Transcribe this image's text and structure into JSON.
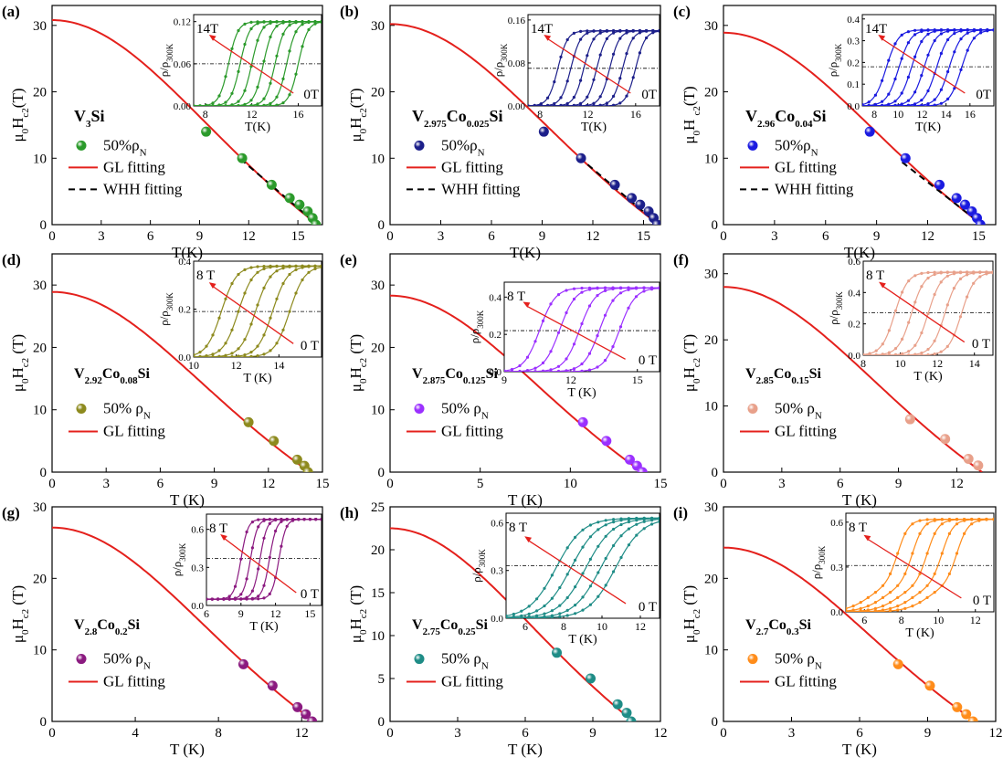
{
  "figure": {
    "colors": {
      "gl_line": "#e4201c",
      "whh_line": "#000000",
      "inset_arrow": "#e4201c",
      "axes": "#000000"
    }
  },
  "chart_data": [
    {
      "id": "a",
      "type": "scatter",
      "panel_label": "(a)",
      "title": "",
      "xlabel": "T(K)",
      "ylabel": "μ0Hc2(T)",
      "xlim": [
        0,
        16.5
      ],
      "ylim": [
        0,
        33
      ],
      "xticks": [
        "0",
        "3",
        "6",
        "9",
        "12",
        "15"
      ],
      "yticks": [
        "0",
        "10",
        "20",
        "30"
      ],
      "compound": [
        "V",
        "3",
        "Si",
        ""
      ],
      "marker_color": "#2b9a2b",
      "legend": {
        "position": "left",
        "entries": [
          "50%ρN",
          "GL fitting",
          "WHH fitting"
        ]
      },
      "series": [
        {
          "name": "50%ρN",
          "type": "scatter",
          "x": [
            9.4,
            11.6,
            13.4,
            14.5,
            15.1,
            15.6,
            15.9,
            16.1
          ],
          "y": [
            14,
            10,
            6,
            4,
            3,
            2,
            1,
            0
          ]
        },
        {
          "name": "GL fitting",
          "type": "line",
          "style": "gl",
          "tc": 16.2,
          "h0": 30.8
        },
        {
          "name": "WHH fitting",
          "type": "line",
          "style": "whh",
          "tc": 16.2,
          "slope": 2.1,
          "from_t": 11.5
        }
      ],
      "inset": {
        "xlabel": "T(K)",
        "ylabel": "ρ/ρ300K",
        "xlim": [
          7,
          18
        ],
        "ylim": [
          0,
          0.13
        ],
        "xticks": [
          "8",
          "12",
          "16"
        ],
        "yticks": [
          "0.00",
          "0.06",
          "0.12"
        ],
        "yticks_values": [
          0,
          0.06,
          0.12
        ],
        "dash_y": 0.06,
        "high_field": "14T",
        "low_field": "0T",
        "curves": {
          "n": 7,
          "tc_start": 10,
          "tc_end": 16,
          "width": 0.4,
          "rho_n": 0.12
        }
      }
    },
    {
      "id": "b",
      "type": "scatter",
      "panel_label": "(b)",
      "title": "",
      "xlabel": "T(K)",
      "ylabel": "μ0Hc2(T)",
      "xlim": [
        0,
        16
      ],
      "ylim": [
        0,
        33
      ],
      "xticks": [
        "0",
        "3",
        "6",
        "9",
        "12",
        "15"
      ],
      "yticks": [
        "0",
        "10",
        "20",
        "30"
      ],
      "compound": [
        "V",
        "2.975",
        "Co",
        "0.025",
        "Si"
      ],
      "marker_color": "#1c1f8a",
      "legend": {
        "position": "left",
        "entries": [
          "50%ρN",
          "GL fitting",
          "WHH fitting"
        ]
      },
      "series": [
        {
          "name": "50%ρN",
          "type": "scatter",
          "x": [
            9.1,
            11.3,
            13.3,
            14.3,
            14.8,
            15.3,
            15.6,
            15.8
          ],
          "y": [
            14,
            10,
            6,
            4,
            3,
            2,
            1,
            0
          ]
        },
        {
          "name": "GL fitting",
          "type": "line",
          "style": "gl",
          "tc": 15.9,
          "h0": 30.2
        },
        {
          "name": "WHH fitting",
          "type": "line",
          "style": "whh",
          "tc": 15.9,
          "slope": 2.15,
          "from_t": 11.2
        }
      ],
      "inset": {
        "xlabel": "T(K)",
        "ylabel": "ρ/ρ300K",
        "xlim": [
          7,
          18
        ],
        "ylim": [
          0,
          0.17
        ],
        "xticks": [
          "8",
          "12",
          "16"
        ],
        "yticks": [
          "0.00",
          "0.08",
          "0.16"
        ],
        "yticks_values": [
          0,
          0.08,
          0.16
        ],
        "dash_y": 0.07,
        "high_field": "14T",
        "low_field": "0T",
        "curves": {
          "n": 7,
          "tc_start": 9.5,
          "tc_end": 16,
          "width": 0.4,
          "rho_n": 0.14
        }
      }
    },
    {
      "id": "c",
      "type": "scatter",
      "panel_label": "(c)",
      "title": "",
      "xlabel": "T(K)",
      "ylabel": "μ0H c2(T)",
      "xlim": [
        0,
        16
      ],
      "ylim": [
        0,
        33
      ],
      "xticks": [
        "0",
        "3",
        "6",
        "9",
        "12",
        "15"
      ],
      "yticks": [
        "0",
        "10",
        "20",
        "30"
      ],
      "compound": [
        "V",
        "2.96",
        "Co",
        "0.04",
        "Si"
      ],
      "marker_color": "#1a1ae0",
      "legend": {
        "position": "left",
        "entries": [
          "50%ρN",
          "GL fitting",
          "WHH fitting"
        ]
      },
      "series": [
        {
          "name": "50%ρN",
          "type": "scatter",
          "x": [
            8.6,
            10.7,
            12.7,
            13.7,
            14.2,
            14.6,
            14.9,
            15.1
          ],
          "y": [
            14,
            10,
            6,
            4,
            3,
            2,
            1,
            0
          ]
        },
        {
          "name": "GL fitting",
          "type": "line",
          "style": "gl",
          "tc": 15.2,
          "h0": 28.9
        },
        {
          "name": "WHH fitting",
          "type": "line",
          "style": "whh",
          "tc": 15.2,
          "slope": 2.0,
          "from_t": 10.5
        }
      ],
      "inset": {
        "xlabel": "T(K)",
        "ylabel": "ρ/ρ300K",
        "xlim": [
          7,
          18
        ],
        "ylim": [
          0,
          0.42
        ],
        "xticks": [
          "8",
          "10",
          "12",
          "14",
          "16"
        ],
        "yticks": [
          "0.0",
          "0.1",
          "0.2",
          "0.3",
          "0.4"
        ],
        "yticks_values": [
          0,
          0.1,
          0.2,
          0.3,
          0.4
        ],
        "dash_y": 0.18,
        "high_field": "14T",
        "low_field": "0T",
        "curves": {
          "n": 7,
          "tc_start": 9.0,
          "tc_end": 15.3,
          "width": 0.5,
          "rho_n": 0.35
        }
      }
    },
    {
      "id": "d",
      "type": "scatter",
      "panel_label": "(d)",
      "title": "",
      "xlabel": "T (K)",
      "ylabel": "μ0Hc2 (T)",
      "xlim": [
        0,
        15
      ],
      "ylim": [
        0,
        35
      ],
      "xticks": [
        "0",
        "3",
        "6",
        "9",
        "12",
        "15"
      ],
      "yticks": [
        "0",
        "10",
        "20",
        "30"
      ],
      "compound": [
        "V",
        "2.92",
        "Co",
        "0.08",
        "Si"
      ],
      "marker_color": "#8d8a1e",
      "legend": {
        "position": "left",
        "entries": [
          "50% ρN",
          "GL fitting"
        ]
      },
      "series": [
        {
          "name": "50% ρN",
          "type": "scatter",
          "x": [
            10.9,
            12.3,
            13.6,
            14.0,
            14.2
          ],
          "y": [
            8,
            5,
            2,
            1,
            0
          ]
        },
        {
          "name": "GL fitting",
          "type": "line",
          "style": "gl",
          "tc": 14.3,
          "h0": 28.9
        }
      ],
      "inset": {
        "xlabel": "T (K)",
        "ylabel": "ρ/ρ300K",
        "xlim": [
          10,
          16
        ],
        "ylim": [
          0,
          0.4
        ],
        "xticks": [
          "10",
          "12",
          "14"
        ],
        "yticks": [
          "0.0",
          "0.2",
          "0.4"
        ],
        "yticks_values": [
          0,
          0.2,
          0.4
        ],
        "dash_y": 0.19,
        "high_field": "8 T",
        "low_field": "0 T",
        "curves": {
          "n": 5,
          "tc_start": 11.3,
          "tc_end": 14.5,
          "width": 0.35,
          "rho_n": 0.38
        }
      }
    },
    {
      "id": "e",
      "type": "scatter",
      "panel_label": "(e)",
      "title": "",
      "xlabel": "T (K)",
      "ylabel": "μ0Hc2 (T)",
      "xlim": [
        0,
        15
      ],
      "ylim": [
        0,
        35
      ],
      "xticks": [
        "0",
        "5",
        "10",
        "15"
      ],
      "yticks": [
        "0",
        "10",
        "20",
        "30"
      ],
      "compound": [
        "V",
        "2.875",
        "Co",
        "0.125",
        "Si"
      ],
      "marker_color": "#9b30ff",
      "legend": {
        "position": "left",
        "entries": [
          "50% ρN",
          "GL fitting"
        ]
      },
      "series": [
        {
          "name": "50% ρN",
          "type": "scatter",
          "x": [
            10.7,
            12.0,
            13.3,
            13.7,
            14.0
          ],
          "y": [
            8,
            5,
            2,
            1,
            0
          ]
        },
        {
          "name": "GL fitting",
          "type": "line",
          "style": "gl",
          "tc": 14.0,
          "h0": 28.3
        }
      ],
      "inset": {
        "xlabel": "T (K)",
        "ylabel": "ρ/ρ300K",
        "xlim": [
          9,
          16
        ],
        "ylim": [
          0,
          0.48
        ],
        "xticks": [
          "9",
          "12",
          "15"
        ],
        "yticks": [
          "0.0",
          "0.2",
          "0.4"
        ],
        "yticks_values": [
          0,
          0.2,
          0.4
        ],
        "dash_y": 0.22,
        "high_field": "8 T",
        "low_field": "0 T",
        "curves": {
          "n": 5,
          "tc_start": 10.6,
          "tc_end": 14.2,
          "width": 0.35,
          "rho_n": 0.45
        }
      }
    },
    {
      "id": "f",
      "type": "scatter",
      "panel_label": "(f)",
      "title": "",
      "xlabel": "T (K)",
      "ylabel": "μ0Hc2 (T)",
      "xlim": [
        0,
        14
      ],
      "ylim": [
        0,
        33
      ],
      "xticks": [
        "0",
        "3",
        "6",
        "9",
        "12"
      ],
      "yticks": [
        "0",
        "10",
        "20",
        "30"
      ],
      "compound": [
        "V",
        "2.85",
        "Co",
        "0.15",
        "Si"
      ],
      "marker_color": "#e8a08a",
      "legend": {
        "position": "left",
        "entries": [
          "50% ρN",
          "GL fitting"
        ]
      },
      "series": [
        {
          "name": "50% ρN",
          "type": "scatter",
          "x": [
            9.6,
            11.4,
            12.6,
            13.1
          ],
          "y": [
            8,
            5,
            2,
            1
          ]
        },
        {
          "name": "GL fitting",
          "type": "line",
          "style": "gl",
          "tc": 13.3,
          "h0": 28.0
        }
      ],
      "inset": {
        "xlabel": "T (K)",
        "ylabel": "ρ/ρ300K",
        "xlim": [
          8,
          15
        ],
        "ylim": [
          0,
          0.6
        ],
        "xticks": [
          "8",
          "10",
          "12",
          "14"
        ],
        "yticks": [
          "0.0",
          "0.2",
          "0.4",
          "0.6"
        ],
        "yticks_values": [
          0,
          0.2,
          0.4,
          0.6
        ],
        "dash_y": 0.27,
        "high_field": "8 T",
        "low_field": "0 T",
        "curves": {
          "n": 5,
          "tc_start": 9.7,
          "tc_end": 13.3,
          "width": 0.35,
          "rho_n": 0.53
        }
      }
    },
    {
      "id": "g",
      "type": "scatter",
      "panel_label": "(g)",
      "title": "",
      "xlabel": "T (K)",
      "ylabel": "μ0Hc2 (T)",
      "xlim": [
        0,
        13
      ],
      "ylim": [
        0,
        30
      ],
      "xticks": [
        "0",
        "4",
        "8",
        "12"
      ],
      "yticks": [
        "0",
        "10",
        "20",
        "30"
      ],
      "compound": [
        "V",
        "2.8",
        "Co",
        "0.2",
        "Si"
      ],
      "marker_color": "#8b1a80",
      "legend": {
        "position": "left",
        "entries": [
          "50% ρN",
          "GL fitting"
        ]
      },
      "series": [
        {
          "name": "50% ρN",
          "type": "scatter",
          "x": [
            9.2,
            10.6,
            11.8,
            12.2,
            12.5
          ],
          "y": [
            8,
            5,
            2,
            1,
            0
          ]
        },
        {
          "name": "GL fitting",
          "type": "line",
          "style": "gl",
          "tc": 12.6,
          "h0": 27.1
        }
      ],
      "inset": {
        "xlabel": "T (K)",
        "ylabel": "ρ/ρ300K",
        "xlim": [
          6,
          16
        ],
        "ylim": [
          0,
          0.72
        ],
        "xticks": [
          "6",
          "9",
          "12",
          "15"
        ],
        "yticks": [
          "0.0",
          "0.3",
          "0.6"
        ],
        "yticks_values": [
          0,
          0.3,
          0.6
        ],
        "dash_y": 0.37,
        "high_field": "8 T",
        "low_field": "0 T",
        "curves": {
          "n": 5,
          "tc_start": 9.0,
          "tc_end": 12.3,
          "width": 0.3,
          "rho_n": 0.68,
          "rho_floor": 0.05
        }
      }
    },
    {
      "id": "h",
      "type": "scatter",
      "panel_label": "(h)",
      "title": "",
      "xlabel": "T (K)",
      "ylabel": "μ0Hc2 (T)",
      "xlim": [
        0,
        12
      ],
      "ylim": [
        0,
        25
      ],
      "xticks": [
        "0",
        "3",
        "6",
        "9",
        "12"
      ],
      "yticks": [
        "0",
        "5",
        "10",
        "15",
        "20",
        "25"
      ],
      "compound": [
        "V",
        "2.75",
        "Co",
        "0.25",
        "Si"
      ],
      "marker_color": "#1e8c86",
      "legend": {
        "position": "left",
        "entries": [
          "50% ρN",
          "GL fitting"
        ]
      },
      "series": [
        {
          "name": "50% ρN",
          "type": "scatter",
          "x": [
            7.4,
            8.9,
            10.1,
            10.5,
            10.7
          ],
          "y": [
            8,
            5,
            2,
            1,
            0
          ]
        },
        {
          "name": "GL fitting",
          "type": "line",
          "style": "gl",
          "tc": 10.8,
          "h0": 22.5
        }
      ],
      "inset": {
        "xlabel": "T (K)",
        "ylabel": "ρ/ρ300K",
        "xlim": [
          5,
          13
        ],
        "ylim": [
          0,
          0.66
        ],
        "xticks": [
          "6",
          "8",
          "10",
          "12"
        ],
        "yticks": [
          "0.0",
          "0.3",
          "0.6"
        ],
        "yticks_values": [
          0,
          0.3,
          0.6
        ],
        "dash_y": 0.33,
        "high_field": "8 T",
        "low_field": "0 T",
        "curves": {
          "n": 5,
          "tc_start": 7.6,
          "tc_end": 10.7,
          "width": 0.7,
          "rho_n": 0.63
        }
      }
    },
    {
      "id": "i",
      "type": "scatter",
      "panel_label": "(i)",
      "title": "",
      "xlabel": "T (K)",
      "ylabel": "μ0Hc2 (T)",
      "xlim": [
        0,
        12
      ],
      "ylim": [
        0,
        30
      ],
      "xticks": [
        "0",
        "3",
        "6",
        "9",
        "12"
      ],
      "yticks": [
        "0",
        "10",
        "20",
        "30"
      ],
      "compound": [
        "V",
        "2.7",
        "Co",
        "0.3",
        "Si"
      ],
      "marker_color": "#ff8c1a",
      "legend": {
        "position": "left",
        "entries": [
          "50% ρN",
          "GL fitting"
        ]
      },
      "series": [
        {
          "name": "50% ρN",
          "type": "scatter",
          "x": [
            7.7,
            9.1,
            10.3,
            10.7,
            11.0
          ],
          "y": [
            8,
            5,
            2,
            1,
            0
          ]
        },
        {
          "name": "GL fitting",
          "type": "line",
          "style": "gl",
          "tc": 11.1,
          "h0": 24.3
        }
      ],
      "inset": {
        "xlabel": "T (K)",
        "ylabel": "ρ/ρ300K",
        "xlim": [
          5,
          13
        ],
        "ylim": [
          0,
          0.66
        ],
        "xticks": [
          "6",
          "8",
          "10",
          "12"
        ],
        "yticks": [
          "0.0",
          "0.3",
          "0.6"
        ],
        "yticks_values": [
          0,
          0.3,
          0.6
        ],
        "dash_y": 0.31,
        "high_field": "8 T",
        "low_field": "0 T",
        "curves": {
          "n": 5,
          "tc_start": 7.8,
          "tc_end": 11.0,
          "width": 0.6,
          "rho_n": 0.62,
          "two_step": true
        }
      }
    }
  ]
}
